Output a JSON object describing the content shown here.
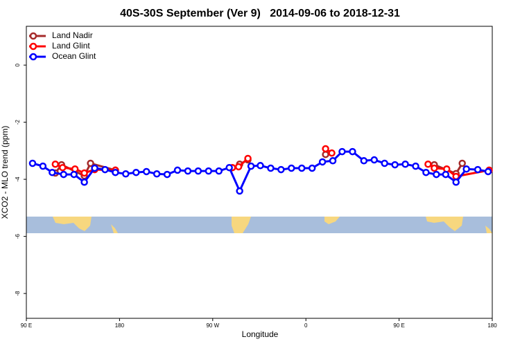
{
  "chart_data": {
    "type": "line",
    "title": "40S-30S September (Ver 9)   2014-09-06 to 2018-12-31",
    "x_label": "Longitude",
    "y_label": "XCO2 - MLO trend (ppm)",
    "xlim": [
      90,
      540
    ],
    "ylim": [
      -8.87,
      1.36
    ],
    "xticks": [
      {
        "value": 90,
        "label": "90 E"
      },
      180,
      {
        "value": 270,
        "label": "90 W"
      },
      {
        "value": 360,
        "label": "0"
      },
      {
        "value": 450,
        "label": "90 E"
      },
      {
        "value": 540,
        "label": "180"
      }
    ],
    "yticks": [
      0,
      -2,
      -4,
      -6,
      -8
    ],
    "legend": "top-left",
    "series": [
      {
        "name": "Land Nadir",
        "color": "#a52a2a",
        "x": [
          118,
          124,
          146,
          152,
          176,
          null,
          296,
          304,
          null,
          379,
          null,
          484,
          505,
          511
        ],
        "values": [
          -3.78,
          -3.49,
          -3.88,
          -3.44,
          -3.68,
          null,
          -3.47,
          -3.32,
          null,
          -3.13,
          null,
          -3.49,
          -3.8,
          -3.44
        ]
      },
      {
        "name": "Land Glint",
        "color": "#ff0000",
        "x": [
          118,
          125,
          137,
          146,
          156,
          176,
          null,
          289,
          295,
          304,
          null,
          379,
          385,
          null,
          478,
          484,
          496,
          505,
          537
        ],
        "values": [
          -3.47,
          -3.59,
          -3.64,
          -3.78,
          -3.66,
          -3.68,
          null,
          -3.59,
          -3.56,
          -3.27,
          null,
          -2.93,
          -3.08,
          null,
          -3.47,
          -3.61,
          -3.64,
          -3.9,
          -3.68
        ]
      },
      {
        "name": "Ocean Glint",
        "color": "#0000ff",
        "x": [
          96,
          106,
          115,
          126,
          136,
          146,
          156,
          166,
          176,
          186,
          196,
          206,
          216,
          226,
          236,
          246,
          256,
          266,
          276,
          286,
          296,
          307,
          316,
          326,
          336,
          346,
          356,
          366,
          376,
          386,
          395,
          405,
          416,
          426,
          436,
          446,
          456,
          466,
          476,
          486,
          495,
          505,
          515,
          526,
          536
        ],
        "values": [
          -3.44,
          -3.54,
          -3.76,
          -3.83,
          -3.83,
          -4.1,
          -3.61,
          -3.66,
          -3.76,
          -3.81,
          -3.76,
          -3.73,
          -3.81,
          -3.83,
          -3.68,
          -3.71,
          -3.71,
          -3.71,
          -3.71,
          -3.59,
          -4.41,
          -3.54,
          -3.52,
          -3.61,
          -3.66,
          -3.61,
          -3.61,
          -3.61,
          -3.39,
          -3.35,
          -3.03,
          -3.03,
          -3.35,
          -3.32,
          -3.44,
          -3.49,
          -3.47,
          -3.54,
          -3.76,
          -3.83,
          -3.83,
          -4.1,
          -3.64,
          -3.66,
          -3.73
        ]
      }
    ]
  }
}
